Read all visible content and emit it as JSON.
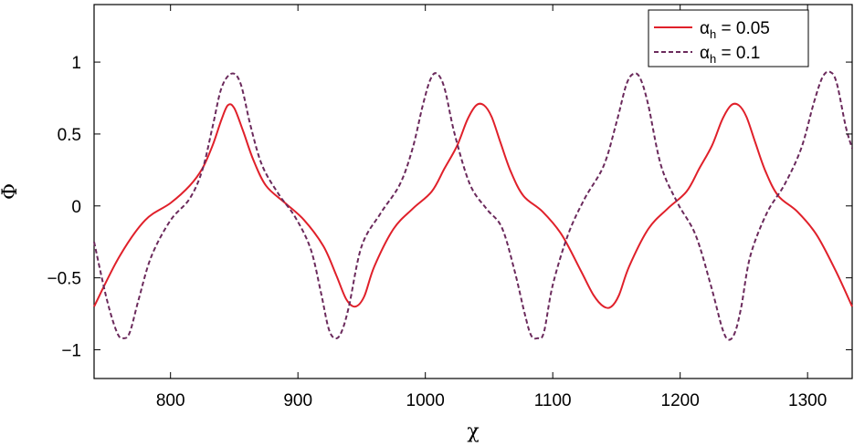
{
  "chart_data": {
    "type": "line",
    "xlabel": "χ",
    "ylabel": "Φ",
    "xlim": [
      740,
      1335
    ],
    "ylim": [
      -1.2,
      1.4
    ],
    "xticks": [
      800,
      900,
      1000,
      1100,
      1200,
      1300
    ],
    "xtick_labels": [
      "800",
      "900",
      "1000",
      "1100",
      "1200",
      "1300"
    ],
    "yticks": [
      -1,
      -0.5,
      0,
      0.5,
      1
    ],
    "ytick_labels": [
      "−1",
      "−0.5",
      "0",
      "0.5",
      "1"
    ],
    "grid": false,
    "legend_position": "top-right",
    "series": [
      {
        "name": "αh = 0.05",
        "legend_symbol": "α",
        "legend_sub": "h",
        "legend_value": " = 0.05",
        "color": "#e0202a",
        "dash": "solid",
        "x": [
          740,
          760,
          780,
          800,
          815,
          825,
          833,
          840,
          845,
          850,
          857,
          865,
          875,
          890,
          905,
          920,
          930,
          938,
          945,
          952,
          960,
          975,
          990,
          1005,
          1015,
          1025,
          1033,
          1040,
          1046,
          1052,
          1059,
          1067,
          1077,
          1092,
          1107,
          1122,
          1132,
          1140,
          1146,
          1152,
          1160,
          1175,
          1190,
          1205,
          1215,
          1225,
          1233,
          1240,
          1246,
          1252,
          1259,
          1267,
          1277,
          1292,
          1307,
          1322,
          1335
        ],
        "y": [
          -0.7,
          -0.35,
          -0.1,
          0.02,
          0.14,
          0.26,
          0.42,
          0.6,
          0.7,
          0.68,
          0.52,
          0.32,
          0.14,
          0.02,
          -0.1,
          -0.28,
          -0.48,
          -0.65,
          -0.7,
          -0.63,
          -0.42,
          -0.16,
          -0.02,
          0.1,
          0.26,
          0.42,
          0.6,
          0.7,
          0.7,
          0.62,
          0.44,
          0.24,
          0.07,
          -0.04,
          -0.2,
          -0.45,
          -0.62,
          -0.7,
          -0.7,
          -0.62,
          -0.42,
          -0.16,
          -0.02,
          0.1,
          0.26,
          0.42,
          0.6,
          0.7,
          0.7,
          0.62,
          0.44,
          0.24,
          0.07,
          -0.04,
          -0.2,
          -0.45,
          -0.7
        ]
      },
      {
        "name": "αh = 0.1",
        "legend_symbol": "α",
        "legend_sub": "h",
        "legend_value": " = 0.1",
        "color": "#6b2a5c",
        "dash": "dashed",
        "x": [
          740,
          750,
          758,
          763,
          768,
          775,
          785,
          800,
          815,
          825,
          833,
          840,
          848,
          855,
          863,
          872,
          885,
          898,
          910,
          918,
          924,
          929,
          934,
          940,
          950,
          965,
          980,
          990,
          998,
          1004,
          1009,
          1015,
          1023,
          1035,
          1048,
          1060,
          1070,
          1078,
          1083,
          1088,
          1093,
          1100,
          1112,
          1125,
          1140,
          1150,
          1158,
          1164,
          1169,
          1175,
          1185,
          1198,
          1212,
          1224,
          1233,
          1238,
          1243,
          1248,
          1255,
          1268,
          1282,
          1295,
          1305,
          1312,
          1318,
          1323,
          1330,
          1335
        ],
        "y": [
          -0.25,
          -0.65,
          -0.88,
          -0.92,
          -0.88,
          -0.65,
          -0.35,
          -0.1,
          0.05,
          0.25,
          0.55,
          0.82,
          0.92,
          0.85,
          0.55,
          0.28,
          0.08,
          -0.08,
          -0.3,
          -0.6,
          -0.85,
          -0.92,
          -0.88,
          -0.7,
          -0.28,
          -0.05,
          0.15,
          0.4,
          0.7,
          0.88,
          0.92,
          0.82,
          0.5,
          0.15,
          -0.02,
          -0.15,
          -0.45,
          -0.75,
          -0.9,
          -0.92,
          -0.88,
          -0.55,
          -0.2,
          0.05,
          0.28,
          0.58,
          0.85,
          0.92,
          0.88,
          0.7,
          0.28,
          0.02,
          -0.2,
          -0.55,
          -0.85,
          -0.93,
          -0.88,
          -0.7,
          -0.35,
          -0.05,
          0.15,
          0.4,
          0.72,
          0.9,
          0.93,
          0.85,
          0.55,
          0.4
        ]
      }
    ]
  }
}
